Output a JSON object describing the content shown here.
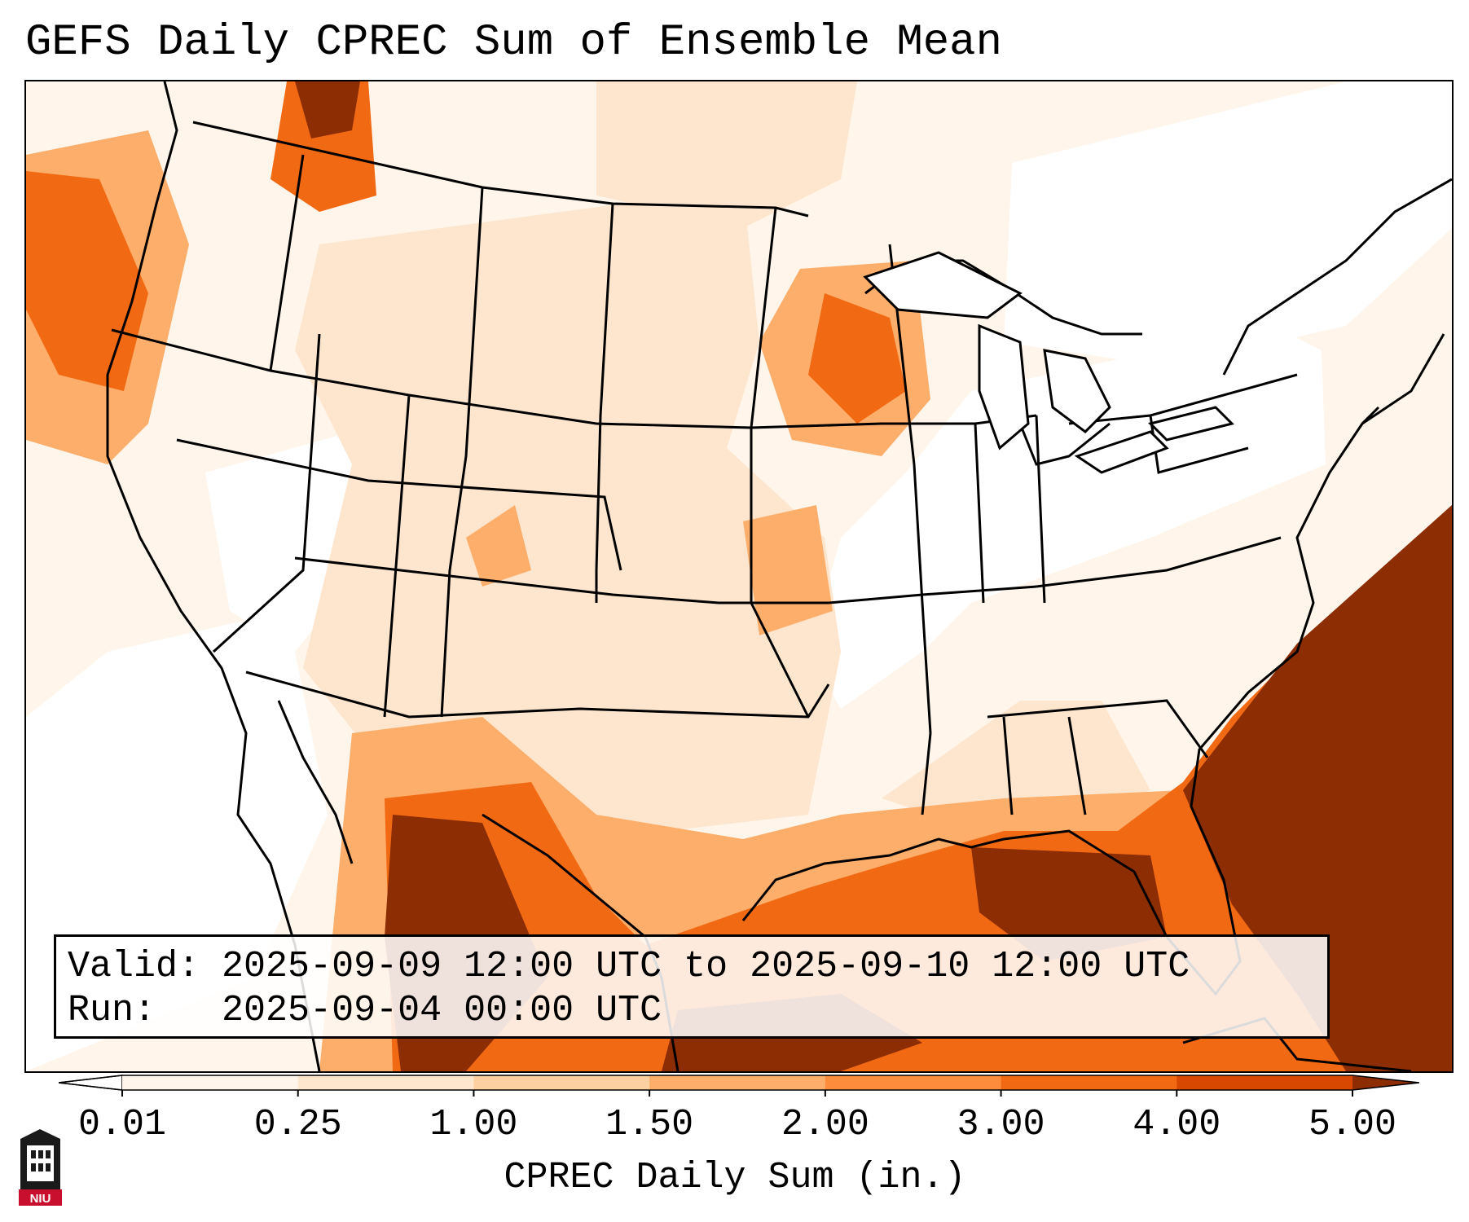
{
  "title": "GEFS Daily CPREC Sum of Ensemble Mean",
  "info": {
    "valid_label": "Valid:",
    "valid_value": "2025-09-09 12:00 UTC to 2025-09-10 12:00 UTC",
    "run_label": "Run:",
    "run_value": "2025-09-04 00:00 UTC"
  },
  "colorbar": {
    "label": "CPREC Daily Sum (in.)",
    "ticks": [
      "0.01",
      "0.25",
      "1.00",
      "1.50",
      "2.00",
      "3.00",
      "4.00",
      "5.00"
    ],
    "colors": [
      "#fff5eb",
      "#fee6ce",
      "#fdd0a2",
      "#fdae6b",
      "#fd8d3c",
      "#f16913",
      "#d94801",
      "#8c2d04"
    ],
    "under_color": "#ffffff",
    "over_color": "#7f2704"
  },
  "logo": {
    "text": "NIU",
    "icon": "university-tower-icon"
  },
  "map": {
    "region": "Contiguous United States, southern Canada, northern Mexico, Gulf of Mexico, western Atlantic",
    "icon": "map-icon"
  }
}
